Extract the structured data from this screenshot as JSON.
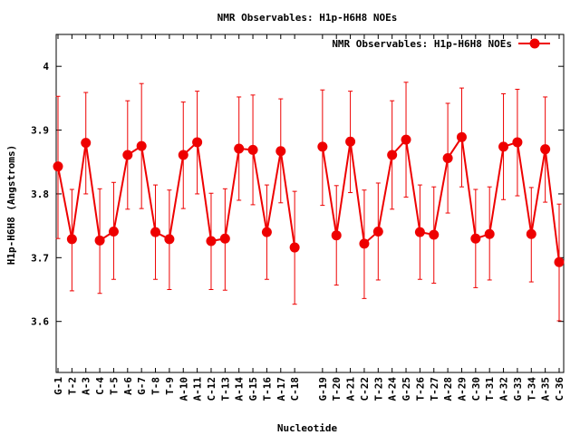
{
  "chart_data": {
    "type": "line",
    "title": "NMR Observables: H1p-H6H8 NOEs",
    "xlabel": "Nucleotide",
    "ylabel": "H1p-H6H8 (Angstroms)",
    "ylim": [
      3.52,
      4.05
    ],
    "yticks": [
      "3.6",
      "3.7",
      "3.8",
      "3.9",
      "4"
    ],
    "grid": false,
    "legend_position": "top-right",
    "series": [
      {
        "name": "NMR Observables: H1p-H6H8 NOEs",
        "color": "#ee0000",
        "segments": [
          {
            "categories": [
              "G-1",
              "T-2",
              "A-3",
              "C-4",
              "T-5",
              "A-6",
              "G-7",
              "T-8",
              "T-9",
              "A-10",
              "A-11",
              "C-12",
              "T-13",
              "A-14",
              "G-15",
              "T-16",
              "A-17",
              "C-18"
            ],
            "values": [
              3.843,
              3.729,
              3.88,
              3.727,
              3.741,
              3.861,
              3.875,
              3.74,
              3.729,
              3.861,
              3.881,
              3.726,
              3.73,
              3.871,
              3.869,
              3.74,
              3.867,
              3.716
            ],
            "err_low": [
              3.73,
              3.648,
              3.8,
              3.644,
              3.666,
              3.776,
              3.777,
              3.666,
              3.65,
              3.777,
              3.8,
              3.65,
              3.649,
              3.79,
              3.783,
              3.666,
              3.786,
              3.627
            ],
            "err_high": [
              3.953,
              3.807,
              3.959,
              3.808,
              3.818,
              3.946,
              3.973,
              3.814,
              3.806,
              3.944,
              3.961,
              3.801,
              3.808,
              3.952,
              3.955,
              3.814,
              3.949,
              3.804
            ]
          },
          {
            "categories": [
              "G-19",
              "T-20",
              "A-21",
              "C-22",
              "T-23",
              "A-24",
              "G-25",
              "T-26",
              "T-27",
              "A-28",
              "A-29",
              "C-30",
              "T-31",
              "A-32",
              "G-33",
              "T-34",
              "A-35",
              "C-36"
            ],
            "values": [
              3.874,
              3.735,
              3.882,
              3.722,
              3.741,
              3.861,
              3.885,
              3.74,
              3.736,
              3.856,
              3.889,
              3.73,
              3.737,
              3.874,
              3.881,
              3.737,
              3.87,
              3.693
            ],
            "err_low": [
              3.782,
              3.657,
              3.802,
              3.636,
              3.665,
              3.776,
              3.795,
              3.666,
              3.66,
              3.77,
              3.811,
              3.653,
              3.665,
              3.791,
              3.797,
              3.662,
              3.787,
              3.601
            ],
            "err_high": [
              3.963,
              3.813,
              3.961,
              3.806,
              3.817,
              3.946,
              3.975,
              3.814,
              3.811,
              3.942,
              3.966,
              3.807,
              3.811,
              3.957,
              3.964,
              3.81,
              3.952,
              3.784
            ]
          }
        ]
      }
    ]
  }
}
